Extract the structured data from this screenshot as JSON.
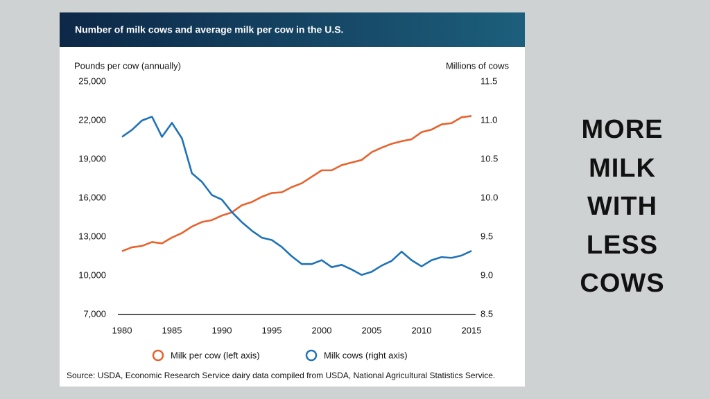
{
  "chart_data": {
    "type": "line",
    "title": "Number of milk cows and average milk per cow in the U.S.",
    "ylabel": "Pounds per cow (annually)",
    "y2label": "Millions of cows",
    "source": "Source: USDA, Economic Research Service dairy data compiled from USDA, National Agricultural Statistics Service.",
    "x": [
      1980,
      1981,
      1982,
      1983,
      1984,
      1985,
      1986,
      1987,
      1988,
      1989,
      1990,
      1991,
      1992,
      1993,
      1994,
      1995,
      1996,
      1997,
      1998,
      1999,
      2000,
      2001,
      2002,
      2003,
      2004,
      2005,
      2006,
      2007,
      2008,
      2009,
      2010,
      2011,
      2012,
      2013,
      2014,
      2015
    ],
    "xlim": [
      1980,
      2015
    ],
    "xticks": [
      1980,
      1985,
      1990,
      1995,
      2000,
      2005,
      2010,
      2015
    ],
    "ylim": [
      7000,
      25000
    ],
    "yticks": [
      {
        "value": 7000,
        "label": "7,000"
      },
      {
        "value": 10000,
        "label": "10,000"
      },
      {
        "value": 13000,
        "label": "13,000"
      },
      {
        "value": 16000,
        "label": "16,000"
      },
      {
        "value": 19000,
        "label": "19,000"
      },
      {
        "value": 22000,
        "label": "22,000"
      },
      {
        "value": 25000,
        "label": "25,000"
      }
    ],
    "y2lim": [
      8.5,
      11.5
    ],
    "y2ticks": [
      8.5,
      {
        "value": 9,
        "label": "9.0"
      },
      9.5,
      {
        "value": 10,
        "label": "10.0"
      },
      10.5,
      {
        "value": 11,
        "label": "11.0"
      },
      11.5
    ],
    "series": [
      {
        "name": "Milk per cow (left axis)",
        "color": "#e8622c",
        "values": [
          11900,
          12200,
          12300,
          12600,
          12500,
          12950,
          13300,
          13800,
          14150,
          14300,
          14650,
          14900,
          15450,
          15700,
          16100,
          16400,
          16450,
          16850,
          17150,
          17650,
          18150,
          18150,
          18550,
          18750,
          18950,
          19550,
          19900,
          20200,
          20400,
          20550,
          21100,
          21300,
          21700,
          21800,
          22250,
          22350
        ]
      },
      {
        "name": "Milk cows (right axis)",
        "color": "#1f72b8",
        "axis": "y2",
        "values": [
          10.79,
          10.88,
          11.0,
          11.05,
          10.79,
          10.97,
          10.77,
          10.32,
          10.21,
          10.04,
          9.98,
          9.82,
          9.69,
          9.58,
          9.49,
          9.46,
          9.37,
          9.25,
          9.15,
          9.15,
          9.2,
          9.11,
          9.14,
          9.08,
          9.01,
          9.05,
          9.13,
          9.19,
          9.31,
          9.2,
          9.12,
          9.2,
          9.24,
          9.23,
          9.26,
          9.32
        ]
      }
    ]
  },
  "side_text": [
    "MORE",
    "MILK",
    "WITH",
    "LESS",
    "COWS"
  ]
}
